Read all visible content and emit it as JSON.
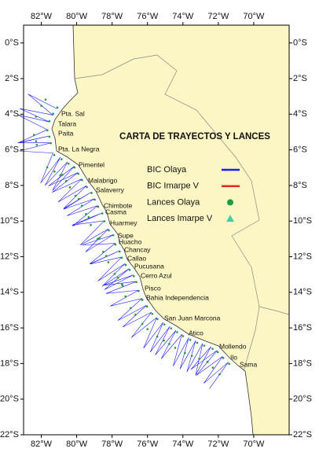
{
  "map": {
    "title": "CARTA DE TRAYECTOS Y LANCES",
    "lon_range": [
      -83,
      -68
    ],
    "lat_range": [
      1,
      -22
    ],
    "lon_ticks": [
      {
        "value": -82,
        "label": "82°W"
      },
      {
        "value": -80,
        "label": "80°W"
      },
      {
        "value": -78,
        "label": "78°W"
      },
      {
        "value": -76,
        "label": "76°W"
      },
      {
        "value": -74,
        "label": "74°W"
      },
      {
        "value": -72,
        "label": "72°W"
      },
      {
        "value": -70,
        "label": "70°W"
      }
    ],
    "lat_ticks": [
      {
        "value": 0,
        "label": "0°S"
      },
      {
        "value": -2,
        "label": "2°S"
      },
      {
        "value": -4,
        "label": "4°S"
      },
      {
        "value": -6,
        "label": "6°S"
      },
      {
        "value": -8,
        "label": "8°S"
      },
      {
        "value": -10,
        "label": "10°S"
      },
      {
        "value": -12,
        "label": "12°S"
      },
      {
        "value": -14,
        "label": "14°S"
      },
      {
        "value": -16,
        "label": "16°S"
      },
      {
        "value": -18,
        "label": "18°S"
      },
      {
        "value": -20,
        "label": "20°S"
      },
      {
        "value": -22,
        "label": "22°S"
      }
    ],
    "legend": [
      {
        "label": "BIC Olaya",
        "color": "#1a1aff",
        "symbol": "line"
      },
      {
        "label": "BIC Imarpe V",
        "color": "#e8261f",
        "symbol": "line"
      },
      {
        "label": "Lances Olaya",
        "color": "#1f9a3a",
        "symbol": "circle"
      },
      {
        "label": "Lances Imarpe V",
        "color": "#4cc9a8",
        "symbol": "triangle"
      }
    ],
    "places": [
      "Pta. Sal",
      "Talara",
      "Paita",
      "Pta. La Negra",
      "Pimentel",
      "Malabrigo",
      "Salaverry",
      "Chimbote",
      "Casma",
      "Huarmey",
      "Supe",
      "Huacho",
      "Chancay",
      "Callao",
      "Pucusana",
      "Cerro Azul",
      "Pisco",
      "Bahia Independencia",
      "San Juan Marcona",
      "Atico",
      "Mollendo",
      "Ilo",
      "Sama"
    ]
  }
}
